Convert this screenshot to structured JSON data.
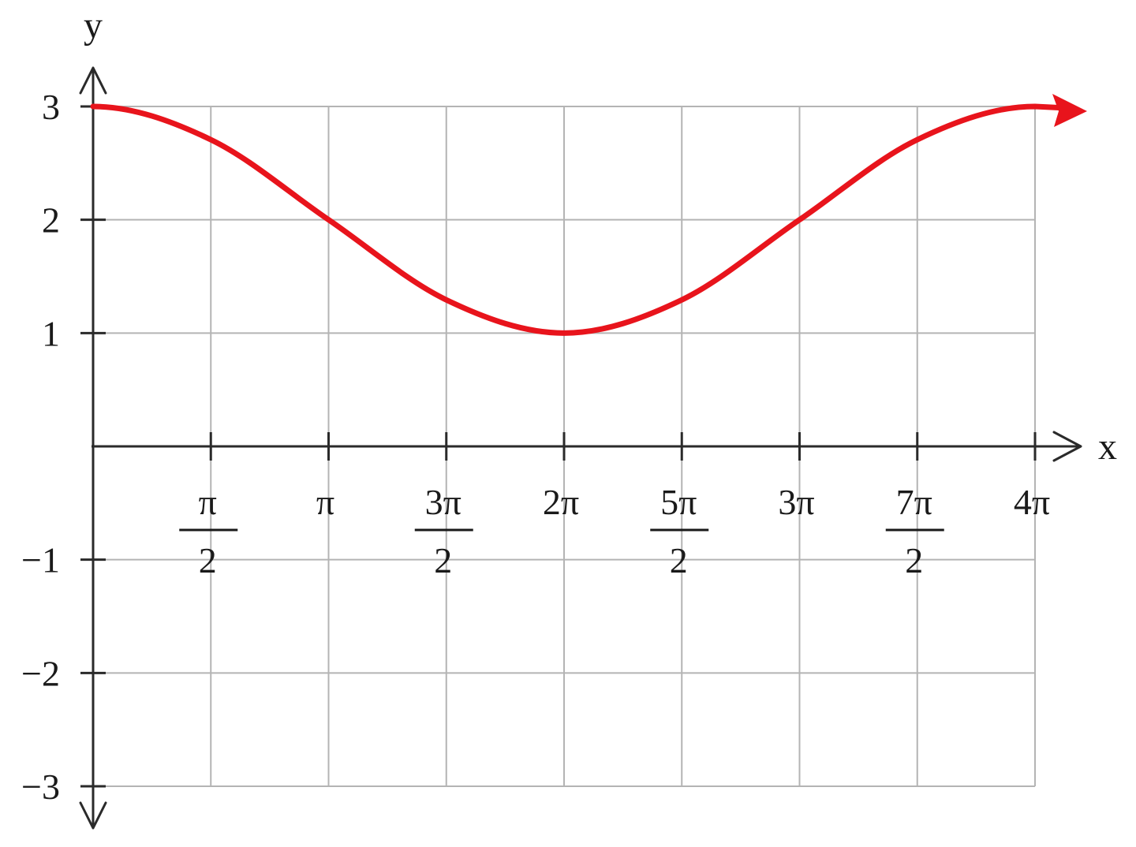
{
  "chart_data": {
    "type": "line",
    "title": "",
    "xlabel": "x",
    "ylabel": "y",
    "xlim": [
      0,
      12.566370614359172
    ],
    "ylim": [
      -3,
      3
    ],
    "grid": true,
    "x_ticks": [
      {
        "value": 1.5707963267948966,
        "numerator": "π",
        "denominator": "2"
      },
      {
        "value": 3.141592653589793,
        "label": "π"
      },
      {
        "value": 4.71238898038469,
        "numerator": "3π",
        "denominator": "2"
      },
      {
        "value": 6.283185307179586,
        "label": "2π"
      },
      {
        "value": 7.853981633974483,
        "numerator": "5π",
        "denominator": "2"
      },
      {
        "value": 9.42477796076938,
        "label": "3π"
      },
      {
        "value": 10.995574287564276,
        "numerator": "7π",
        "denominator": "2"
      },
      {
        "value": 12.566370614359172,
        "label": "4π"
      }
    ],
    "y_ticks": [
      {
        "value": 3,
        "label": "3"
      },
      {
        "value": 2,
        "label": "2"
      },
      {
        "value": 1,
        "label": "1"
      },
      {
        "value": -1,
        "label": "−1"
      },
      {
        "value": -2,
        "label": "−2"
      },
      {
        "value": -3,
        "label": "−3"
      }
    ],
    "series": [
      {
        "color": "#e8141c",
        "x": [
          0,
          1.5707963267948966,
          3.141592653589793,
          4.71238898038469,
          6.283185307179586,
          7.853981633974483,
          9.42477796076938,
          10.995574287564276,
          12.566370614359172
        ],
        "y": [
          3,
          2.707,
          2,
          1.293,
          1,
          1.293,
          2,
          2.707,
          3
        ]
      }
    ]
  }
}
